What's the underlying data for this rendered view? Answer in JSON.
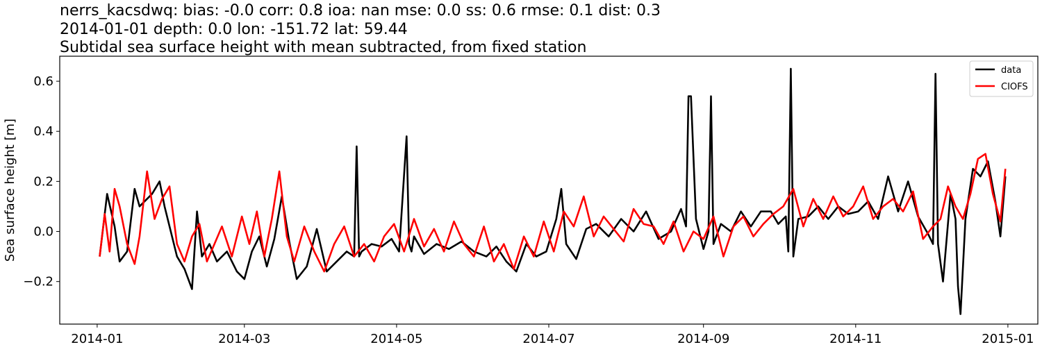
{
  "chart_data": {
    "type": "line",
    "title_lines": [
      "nerrs_kacsdwq: bias: -0.0  corr: 0.8  ioa: nan  mse: 0.0  ss: 0.6  rmse: 0.1  dist: 0.3",
      "2014-01-01 depth: 0.0 lon: -151.72 lat: 59.44",
      "Subtidal sea surface height with mean subtracted, from fixed station"
    ],
    "xlabel": "",
    "ylabel": "Sea surface height [m]",
    "xlim": [
      "2013-12-17",
      "2015-01-13"
    ],
    "ylim": [
      -0.37,
      0.7
    ],
    "xticks": [
      "2014-01",
      "2014-03",
      "2014-05",
      "2014-07",
      "2014-09",
      "2014-11",
      "2015-01"
    ],
    "xtick_dates": [
      "2014-01-01",
      "2014-03-01",
      "2014-05-01",
      "2014-07-01",
      "2014-09-01",
      "2014-11-01",
      "2015-01-01"
    ],
    "yticks": [
      -0.2,
      0.0,
      0.2,
      0.4,
      0.6
    ],
    "ytick_labels": [
      "−0.2",
      "0.0",
      "0.2",
      "0.4",
      "0.6"
    ],
    "grid": false,
    "legend_position": "top-right",
    "series": [
      {
        "name": "data",
        "color": "#000000",
        "x": [
          "2014-01-02",
          "2014-01-05",
          "2014-01-08",
          "2014-01-10",
          "2014-01-13",
          "2014-01-16",
          "2014-01-18",
          "2014-01-20",
          "2014-01-23",
          "2014-01-26",
          "2014-01-28",
          "2014-02-02",
          "2014-02-05",
          "2014-02-08",
          "2014-02-10",
          "2014-02-12",
          "2014-02-15",
          "2014-02-18",
          "2014-02-22",
          "2014-02-26",
          "2014-03-01",
          "2014-03-04",
          "2014-03-07",
          "2014-03-10",
          "2014-03-13",
          "2014-03-16",
          "2014-03-19",
          "2014-03-22",
          "2014-03-26",
          "2014-03-30",
          "2014-04-03",
          "2014-04-07",
          "2014-04-11",
          "2014-04-14",
          "2014-04-15",
          "2014-04-16",
          "2014-04-17",
          "2014-04-21",
          "2014-04-25",
          "2014-04-29",
          "2014-05-02",
          "2014-05-05",
          "2014-05-06",
          "2014-05-07",
          "2014-05-08",
          "2014-05-12",
          "2014-05-17",
          "2014-05-22",
          "2014-05-27",
          "2014-06-01",
          "2014-06-06",
          "2014-06-10",
          "2014-06-14",
          "2014-06-18",
          "2014-06-22",
          "2014-06-26",
          "2014-06-30",
          "2014-07-04",
          "2014-07-06",
          "2014-07-08",
          "2014-07-12",
          "2014-07-16",
          "2014-07-20",
          "2014-07-25",
          "2014-07-30",
          "2014-08-04",
          "2014-08-09",
          "2014-08-14",
          "2014-08-19",
          "2014-08-23",
          "2014-08-25",
          "2014-08-26",
          "2014-08-27",
          "2014-08-29",
          "2014-09-01",
          "2014-09-03",
          "2014-09-04",
          "2014-09-05",
          "2014-09-08",
          "2014-09-12",
          "2014-09-16",
          "2014-09-20",
          "2014-09-24",
          "2014-09-28",
          "2014-10-01",
          "2014-10-04",
          "2014-10-05",
          "2014-10-06",
          "2014-10-07",
          "2014-10-09",
          "2014-10-13",
          "2014-10-17",
          "2014-10-21",
          "2014-10-25",
          "2014-10-29",
          "2014-11-02",
          "2014-11-06",
          "2014-11-10",
          "2014-11-14",
          "2014-11-18",
          "2014-11-22",
          "2014-11-26",
          "2014-11-30",
          "2014-12-02",
          "2014-12-03",
          "2014-12-04",
          "2014-12-06",
          "2014-12-09",
          "2014-12-11",
          "2014-12-12",
          "2014-12-13",
          "2014-12-15",
          "2014-12-18",
          "2014-12-21",
          "2014-12-24",
          "2014-12-27",
          "2014-12-29",
          "2014-12-31"
        ],
        "y": [
          -0.1,
          0.15,
          0.02,
          -0.12,
          -0.08,
          0.17,
          0.1,
          0.12,
          0.15,
          0.2,
          0.1,
          -0.1,
          -0.15,
          -0.23,
          0.08,
          -0.1,
          -0.05,
          -0.12,
          -0.08,
          -0.16,
          -0.19,
          -0.08,
          -0.02,
          -0.14,
          -0.03,
          0.14,
          -0.04,
          -0.19,
          -0.14,
          0.01,
          -0.16,
          -0.12,
          -0.08,
          -0.1,
          0.34,
          -0.1,
          -0.08,
          -0.05,
          -0.06,
          -0.03,
          -0.08,
          0.38,
          -0.05,
          -0.08,
          -0.02,
          -0.09,
          -0.05,
          -0.07,
          -0.04,
          -0.08,
          -0.1,
          -0.06,
          -0.12,
          -0.16,
          -0.05,
          -0.1,
          -0.08,
          0.05,
          0.17,
          -0.05,
          -0.11,
          0.01,
          0.03,
          -0.02,
          0.05,
          0.0,
          0.08,
          -0.03,
          0.0,
          0.09,
          0.02,
          0.54,
          0.54,
          0.05,
          -0.07,
          0.0,
          0.54,
          -0.05,
          0.03,
          0.0,
          0.08,
          0.02,
          0.08,
          0.08,
          0.03,
          0.06,
          -0.08,
          0.65,
          -0.1,
          0.05,
          0.06,
          0.1,
          0.05,
          0.1,
          0.07,
          0.08,
          0.12,
          0.05,
          0.22,
          0.08,
          0.2,
          0.06,
          -0.01,
          -0.05,
          0.63,
          -0.05,
          -0.2,
          0.15,
          0.05,
          -0.22,
          -0.33,
          0.05,
          0.25,
          0.22,
          0.28,
          0.12,
          -0.02,
          0.22
        ]
      },
      {
        "name": "CIOFS",
        "color": "#ff0000",
        "x": [
          "2014-01-02",
          "2014-01-04",
          "2014-01-06",
          "2014-01-08",
          "2014-01-10",
          "2014-01-13",
          "2014-01-16",
          "2014-01-18",
          "2014-01-21",
          "2014-01-24",
          "2014-01-27",
          "2014-01-30",
          "2014-02-02",
          "2014-02-05",
          "2014-02-08",
          "2014-02-11",
          "2014-02-14",
          "2014-02-17",
          "2014-02-20",
          "2014-02-24",
          "2014-02-28",
          "2014-03-03",
          "2014-03-06",
          "2014-03-09",
          "2014-03-12",
          "2014-03-15",
          "2014-03-18",
          "2014-03-21",
          "2014-03-25",
          "2014-03-29",
          "2014-04-02",
          "2014-04-06",
          "2014-04-10",
          "2014-04-14",
          "2014-04-18",
          "2014-04-22",
          "2014-04-26",
          "2014-04-30",
          "2014-05-04",
          "2014-05-08",
          "2014-05-12",
          "2014-05-16",
          "2014-05-20",
          "2014-05-24",
          "2014-05-28",
          "2014-06-01",
          "2014-06-05",
          "2014-06-09",
          "2014-06-13",
          "2014-06-17",
          "2014-06-21",
          "2014-06-25",
          "2014-06-29",
          "2014-07-03",
          "2014-07-07",
          "2014-07-11",
          "2014-07-15",
          "2014-07-19",
          "2014-07-23",
          "2014-07-27",
          "2014-07-31",
          "2014-08-04",
          "2014-08-08",
          "2014-08-12",
          "2014-08-16",
          "2014-08-20",
          "2014-08-24",
          "2014-08-28",
          "2014-09-01",
          "2014-09-05",
          "2014-09-09",
          "2014-09-13",
          "2014-09-17",
          "2014-09-21",
          "2014-09-25",
          "2014-09-29",
          "2014-10-03",
          "2014-10-07",
          "2014-10-11",
          "2014-10-15",
          "2014-10-19",
          "2014-10-23",
          "2014-10-27",
          "2014-10-31",
          "2014-11-04",
          "2014-11-08",
          "2014-11-12",
          "2014-11-16",
          "2014-11-20",
          "2014-11-24",
          "2014-11-28",
          "2014-12-02",
          "2014-12-05",
          "2014-12-08",
          "2014-12-11",
          "2014-12-14",
          "2014-12-17",
          "2014-12-20",
          "2014-12-23",
          "2014-12-26",
          "2014-12-29",
          "2014-12-31"
        ],
        "y": [
          -0.1,
          0.07,
          -0.08,
          0.17,
          0.1,
          -0.05,
          -0.13,
          -0.02,
          0.24,
          0.05,
          0.13,
          0.18,
          -0.05,
          -0.12,
          -0.02,
          0.03,
          -0.12,
          -0.05,
          0.02,
          -0.1,
          0.06,
          -0.05,
          0.08,
          -0.1,
          0.05,
          0.24,
          -0.02,
          -0.12,
          0.02,
          -0.08,
          -0.16,
          -0.05,
          0.02,
          -0.1,
          -0.05,
          -0.12,
          -0.02,
          0.03,
          -0.08,
          0.05,
          -0.06,
          0.01,
          -0.08,
          0.04,
          -0.05,
          -0.1,
          0.02,
          -0.12,
          -0.05,
          -0.15,
          -0.02,
          -0.1,
          0.04,
          -0.08,
          0.08,
          0.02,
          0.14,
          -0.02,
          0.06,
          0.01,
          -0.04,
          0.09,
          0.03,
          0.02,
          -0.05,
          0.04,
          -0.08,
          0.0,
          -0.03,
          0.06,
          -0.1,
          0.02,
          0.06,
          -0.02,
          0.03,
          0.07,
          0.1,
          0.17,
          0.02,
          0.13,
          0.05,
          0.14,
          0.06,
          0.1,
          0.18,
          0.05,
          0.1,
          0.13,
          0.08,
          0.16,
          -0.03,
          0.02,
          0.05,
          0.18,
          0.1,
          0.05,
          0.15,
          0.29,
          0.31,
          0.15,
          0.04,
          0.25
        ]
      }
    ]
  }
}
